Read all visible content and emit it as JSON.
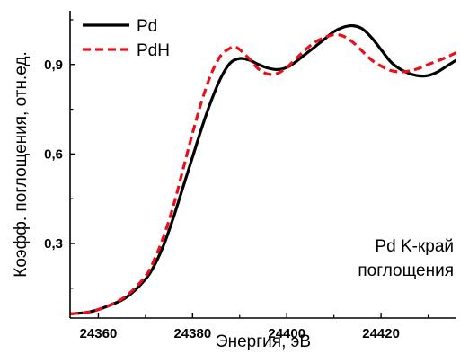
{
  "chart_data": {
    "type": "line",
    "xlabel": "Энергия, эВ",
    "ylabel": "Коэфф. поглощения, отн.ед.",
    "xlim": [
      24354,
      24436
    ],
    "ylim": [
      0.05,
      1.08
    ],
    "xticks": [
      24360,
      24380,
      24400,
      24420
    ],
    "xtick_labels": [
      "24360",
      "24380",
      "24400",
      "24420"
    ],
    "yticks": [
      0.3,
      0.6,
      0.9
    ],
    "ytick_labels": [
      "0,3",
      "0,6",
      "0,9"
    ],
    "legend_position": "top-left",
    "annotation": [
      "Pd K-край",
      "поглощения"
    ],
    "series": [
      {
        "name": "Pd",
        "color": "#000000",
        "style": "solid",
        "x": [
          24354,
          24358,
          24362,
          24366,
          24370,
          24372,
          24374,
          24376,
          24378,
          24380,
          24382,
          24384,
          24386,
          24388,
          24390,
          24392,
          24394,
          24396,
          24398,
          24400,
          24402,
          24404,
          24406,
          24408,
          24410,
          24412,
          24414,
          24416,
          24418,
          24420,
          24422,
          24424,
          24426,
          24428,
          24430,
          24432,
          24434,
          24436
        ],
        "y": [
          0.064,
          0.07,
          0.09,
          0.12,
          0.18,
          0.23,
          0.3,
          0.39,
          0.49,
          0.59,
          0.69,
          0.78,
          0.855,
          0.905,
          0.92,
          0.915,
          0.9,
          0.888,
          0.883,
          0.89,
          0.91,
          0.935,
          0.96,
          0.985,
          1.01,
          1.025,
          1.03,
          1.02,
          0.99,
          0.95,
          0.91,
          0.885,
          0.87,
          0.862,
          0.863,
          0.875,
          0.895,
          0.915
        ]
      },
      {
        "name": "PdH",
        "color": "#e8101a",
        "style": "dashed",
        "x": [
          24354,
          24358,
          24362,
          24366,
          24370,
          24372,
          24374,
          24376,
          24378,
          24380,
          24382,
          24384,
          24386,
          24388,
          24389,
          24390,
          24392,
          24394,
          24396,
          24398,
          24400,
          24402,
          24404,
          24406,
          24408,
          24410,
          24412,
          24414,
          24416,
          24418,
          24420,
          24422,
          24424,
          24426,
          24428,
          24430,
          24432,
          24434,
          24436
        ],
        "y": [
          0.064,
          0.07,
          0.09,
          0.125,
          0.19,
          0.25,
          0.33,
          0.43,
          0.55,
          0.67,
          0.78,
          0.87,
          0.93,
          0.955,
          0.958,
          0.95,
          0.92,
          0.885,
          0.868,
          0.87,
          0.89,
          0.92,
          0.95,
          0.975,
          0.99,
          1.0,
          0.995,
          0.975,
          0.945,
          0.915,
          0.895,
          0.88,
          0.875,
          0.878,
          0.887,
          0.9,
          0.912,
          0.925,
          0.94
        ]
      }
    ]
  }
}
